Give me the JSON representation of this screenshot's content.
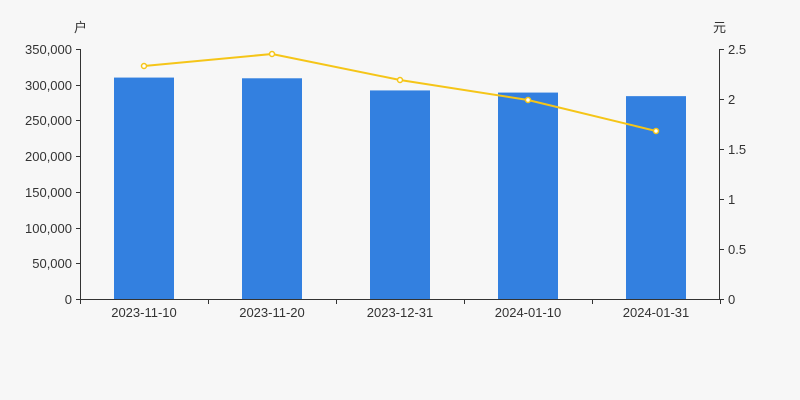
{
  "chart_data": {
    "type": "bar",
    "categories": [
      "2023-11-10",
      "2023-11-20",
      "2023-12-31",
      "2024-01-10",
      "2024-01-31"
    ],
    "series": [
      {
        "type": "bar",
        "axis": "left",
        "color": "#3380e0",
        "values": [
          310000,
          309000,
          292000,
          289000,
          284000
        ]
      },
      {
        "type": "line",
        "axis": "right",
        "color": "#f5c518",
        "values": [
          2.33,
          2.45,
          2.19,
          1.99,
          1.68
        ]
      }
    ],
    "y_left": {
      "unit": "户",
      "ylim": [
        0,
        350000
      ],
      "ticks": [
        0,
        50000,
        100000,
        150000,
        200000,
        250000,
        300000,
        350000
      ],
      "tick_labels": [
        "0",
        "50,000",
        "100,000",
        "150,000",
        "200,000",
        "250,000",
        "300,000",
        "350,000"
      ]
    },
    "y_right": {
      "unit": "元",
      "ylim": [
        0,
        2.5
      ],
      "ticks": [
        0,
        0.5,
        1,
        1.5,
        2,
        2.5
      ],
      "tick_labels": [
        "0",
        "0.5",
        "1",
        "1.5",
        "2",
        "2.5"
      ]
    },
    "grid": false,
    "legend": "none"
  }
}
